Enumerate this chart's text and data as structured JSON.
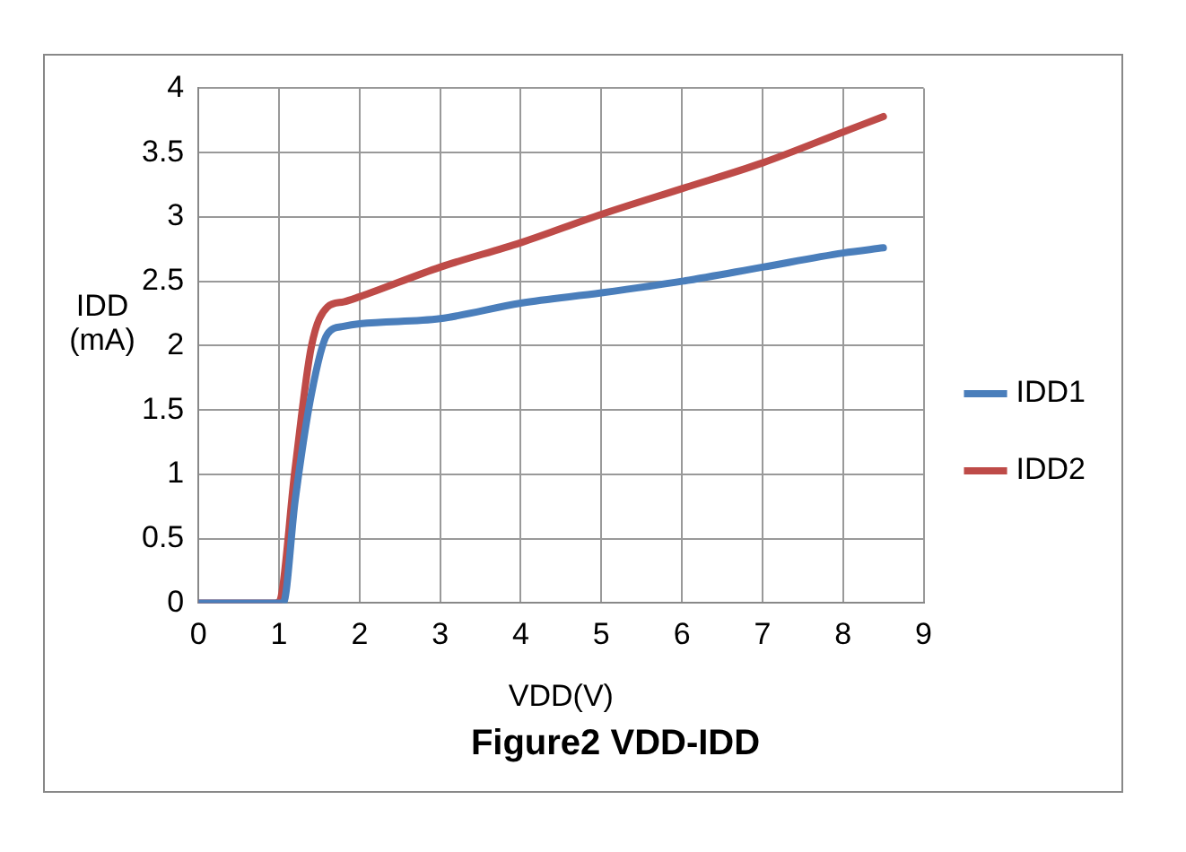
{
  "chart_data": {
    "type": "line",
    "title": "Figure2 VDD-IDD",
    "xlabel": "VDD(V)",
    "ylabel": "IDD (mA)",
    "xlim": [
      0,
      9
    ],
    "xticks": [
      0,
      1,
      2,
      3,
      4,
      5,
      6,
      7,
      8,
      9
    ],
    "ylim": [
      0,
      4
    ],
    "yticks": [
      0,
      0.5,
      1,
      1.5,
      2,
      2.5,
      3,
      3.5,
      4
    ],
    "grid": true,
    "legend": "right",
    "marker": "none",
    "line_style": "solid",
    "series": [
      {
        "name": "IDD1",
        "color": "#4a7ebb",
        "x": [
          0,
          0.95,
          1.05,
          1.2,
          1.4,
          1.6,
          1.8,
          2,
          3,
          4,
          5,
          6,
          7,
          8,
          8.5
        ],
        "values": [
          0,
          0,
          0,
          0.8,
          1.62,
          2.09,
          2.15,
          2.17,
          2.21,
          2.33,
          2.41,
          2.5,
          2.61,
          2.72,
          2.76
        ]
      },
      {
        "name": "IDD2",
        "color": "#be4b48",
        "x": [
          0,
          0.95,
          1,
          1.2,
          1.4,
          1.6,
          1.8,
          2,
          3,
          4,
          5,
          6,
          7,
          8,
          8.5
        ],
        "values": [
          0,
          0,
          0.01,
          1.05,
          1.99,
          2.3,
          2.34,
          2.38,
          2.61,
          2.8,
          3.02,
          3.22,
          3.42,
          3.66,
          3.78
        ]
      }
    ]
  }
}
